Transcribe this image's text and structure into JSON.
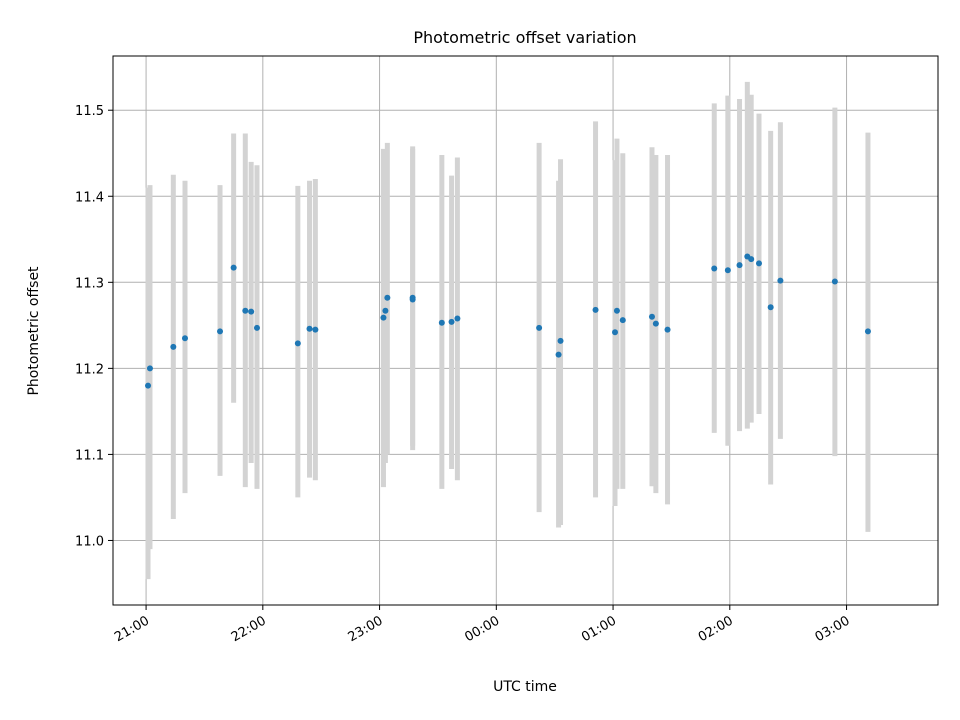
{
  "chart_data": {
    "type": "scatter",
    "title": "Photometric offset variation",
    "xlabel": "UTC time",
    "ylabel": "Photometric offset",
    "x_unit": "UTC time (HH:MM), night spanning midnight",
    "xlim": [
      "20:43",
      "03:47"
    ],
    "ylim": [
      10.925,
      11.563
    ],
    "x_ticks": [
      "21:00",
      "22:00",
      "23:00",
      "00:00",
      "01:00",
      "02:00",
      "03:00"
    ],
    "y_ticks": [
      "11.0",
      "11.1",
      "11.2",
      "11.3",
      "11.4",
      "11.5"
    ],
    "grid": true,
    "point_color": "#1f77b4",
    "errorbar_color": "#d3d3d3",
    "points": [
      {
        "x": "21:01",
        "y": 11.18,
        "lo": 10.955,
        "hi": 11.41
      },
      {
        "x": "21:02",
        "y": 11.2,
        "lo": 10.99,
        "hi": 11.413
      },
      {
        "x": "21:14",
        "y": 11.225,
        "lo": 11.025,
        "hi": 11.425
      },
      {
        "x": "21:20",
        "y": 11.235,
        "lo": 11.055,
        "hi": 11.418
      },
      {
        "x": "21:38",
        "y": 11.243,
        "lo": 11.075,
        "hi": 11.413
      },
      {
        "x": "21:45",
        "y": 11.317,
        "lo": 11.16,
        "hi": 11.473
      },
      {
        "x": "21:51",
        "y": 11.267,
        "lo": 11.062,
        "hi": 11.473
      },
      {
        "x": "21:54",
        "y": 11.266,
        "lo": 11.09,
        "hi": 11.44
      },
      {
        "x": "21:57",
        "y": 11.247,
        "lo": 11.06,
        "hi": 11.436
      },
      {
        "x": "22:18",
        "y": 11.229,
        "lo": 11.05,
        "hi": 11.412
      },
      {
        "x": "22:24",
        "y": 11.246,
        "lo": 11.073,
        "hi": 11.418
      },
      {
        "x": "22:27",
        "y": 11.245,
        "lo": 11.07,
        "hi": 11.42
      },
      {
        "x": "23:02",
        "y": 11.259,
        "lo": 11.062,
        "hi": 11.455
      },
      {
        "x": "23:03",
        "y": 11.267,
        "lo": 11.09,
        "hi": 11.445
      },
      {
        "x": "23:04",
        "y": 11.282,
        "lo": 11.1,
        "hi": 11.462
      },
      {
        "x": "23:17",
        "y": 11.28,
        "lo": 11.105,
        "hi": 11.458
      },
      {
        "x": "23:17",
        "y": 11.282,
        "lo": 11.11,
        "hi": 11.455
      },
      {
        "x": "23:32",
        "y": 11.253,
        "lo": 11.06,
        "hi": 11.448
      },
      {
        "x": "23:37",
        "y": 11.254,
        "lo": 11.083,
        "hi": 11.424
      },
      {
        "x": "23:40",
        "y": 11.258,
        "lo": 11.07,
        "hi": 11.445
      },
      {
        "x": "00:22",
        "y": 11.247,
        "lo": 11.033,
        "hi": 11.462
      },
      {
        "x": "00:32",
        "y": 11.216,
        "lo": 11.015,
        "hi": 11.418
      },
      {
        "x": "00:33",
        "y": 11.232,
        "lo": 11.018,
        "hi": 11.443
      },
      {
        "x": "00:51",
        "y": 11.268,
        "lo": 11.05,
        "hi": 11.487
      },
      {
        "x": "01:01",
        "y": 11.242,
        "lo": 11.04,
        "hi": 11.442
      },
      {
        "x": "01:02",
        "y": 11.267,
        "lo": 11.06,
        "hi": 11.467
      },
      {
        "x": "01:05",
        "y": 11.256,
        "lo": 11.06,
        "hi": 11.45
      },
      {
        "x": "01:20",
        "y": 11.26,
        "lo": 11.063,
        "hi": 11.457
      },
      {
        "x": "01:22",
        "y": 11.252,
        "lo": 11.055,
        "hi": 11.448
      },
      {
        "x": "01:28",
        "y": 11.245,
        "lo": 11.042,
        "hi": 11.448
      },
      {
        "x": "01:52",
        "y": 11.316,
        "lo": 11.125,
        "hi": 11.508
      },
      {
        "x": "01:59",
        "y": 11.314,
        "lo": 11.11,
        "hi": 11.517
      },
      {
        "x": "02:05",
        "y": 11.32,
        "lo": 11.127,
        "hi": 11.513
      },
      {
        "x": "02:09",
        "y": 11.33,
        "lo": 11.13,
        "hi": 11.533
      },
      {
        "x": "02:11",
        "y": 11.327,
        "lo": 11.137,
        "hi": 11.518
      },
      {
        "x": "02:15",
        "y": 11.322,
        "lo": 11.147,
        "hi": 11.496
      },
      {
        "x": "02:21",
        "y": 11.271,
        "lo": 11.065,
        "hi": 11.476
      },
      {
        "x": "02:26",
        "y": 11.302,
        "lo": 11.118,
        "hi": 11.486
      },
      {
        "x": "02:54",
        "y": 11.301,
        "lo": 11.098,
        "hi": 11.503
      },
      {
        "x": "03:11",
        "y": 11.243,
        "lo": 11.01,
        "hi": 11.474
      }
    ]
  }
}
